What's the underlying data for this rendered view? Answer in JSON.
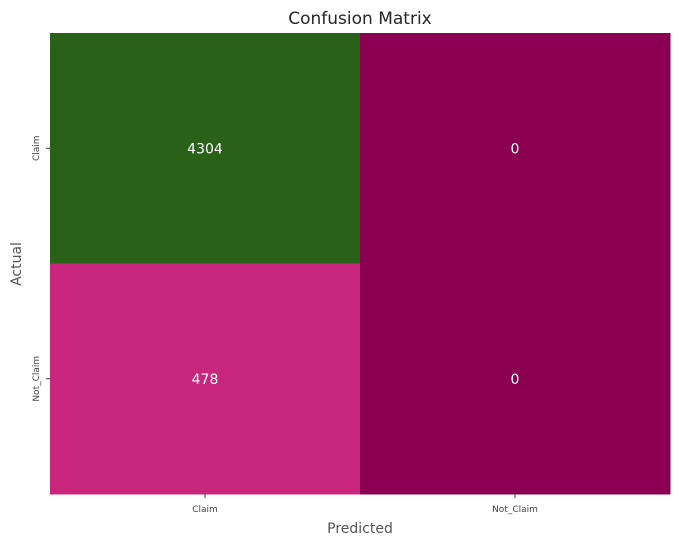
{
  "chart_data": {
    "type": "heatmap",
    "title": "Confusion Matrix",
    "xlabel": "Predicted",
    "ylabel": "Actual",
    "x_categories": [
      "Claim",
      "Not_Claim"
    ],
    "y_categories": [
      "Claim",
      "Not_Claim"
    ],
    "values": [
      [
        4304,
        0
      ],
      [
        478,
        0
      ]
    ],
    "cell_colors": [
      [
        "#2a6118",
        "#8b0050"
      ],
      [
        "#c8267c",
        "#8b0050"
      ]
    ],
    "colorbar": false
  }
}
